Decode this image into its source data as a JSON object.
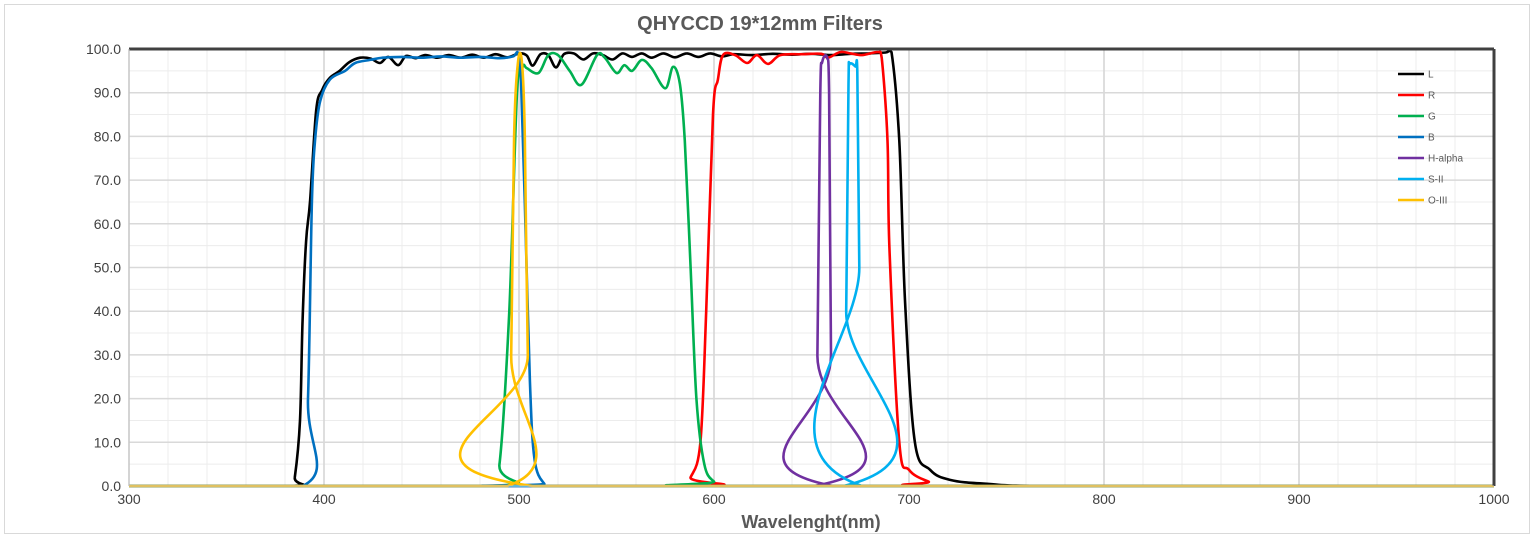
{
  "chart_data": {
    "type": "line",
    "title": "QHYCCD 19*12mm Filters",
    "xlabel": "Wavelenght(nm)",
    "ylabel": "",
    "xlim": [
      300,
      1000
    ],
    "ylim": [
      0,
      100
    ],
    "xticks": [
      "300",
      "400",
      "500",
      "600",
      "700",
      "800",
      "900",
      "1000"
    ],
    "yticks": [
      "0.0",
      "10.0",
      "20.0",
      "30.0",
      "40.0",
      "50.0",
      "60.0",
      "70.0",
      "80.0",
      "90.0",
      "100.0"
    ],
    "grid": true,
    "legend_position": "top-right",
    "series": [
      {
        "name": "L",
        "color": "#000000",
        "points": [
          [
            300,
            0
          ],
          [
            383,
            0
          ],
          [
            385,
            2
          ],
          [
            387.7,
            15
          ],
          [
            389,
            38
          ],
          [
            390.8,
            56
          ],
          [
            392.8,
            65
          ],
          [
            396,
            86
          ],
          [
            399,
            90.6
          ],
          [
            403,
            93.4
          ],
          [
            408,
            95
          ],
          [
            413,
            97
          ],
          [
            418.5,
            98
          ],
          [
            424,
            97.8
          ],
          [
            428.7,
            96.8
          ],
          [
            433,
            98.2
          ],
          [
            438,
            96.3
          ],
          [
            442,
            98.4
          ],
          [
            447,
            97.9
          ],
          [
            452,
            98.6
          ],
          [
            458,
            98
          ],
          [
            464,
            98.6
          ],
          [
            470,
            98
          ],
          [
            476,
            98.7
          ],
          [
            482,
            98
          ],
          [
            488,
            98.8
          ],
          [
            494,
            98.1
          ],
          [
            500,
            99
          ],
          [
            504,
            98.5
          ],
          [
            507,
            96.2
          ],
          [
            511,
            98.8
          ],
          [
            515,
            98.6
          ],
          [
            519,
            95.8
          ],
          [
            523,
            98.8
          ],
          [
            528,
            99
          ],
          [
            533,
            97.6
          ],
          [
            538,
            99
          ],
          [
            543,
            98.6
          ],
          [
            548,
            97.6
          ],
          [
            553,
            99
          ],
          [
            558,
            98.2
          ],
          [
            563,
            99
          ],
          [
            568,
            98
          ],
          [
            574,
            99
          ],
          [
            580,
            98.1
          ],
          [
            586,
            99
          ],
          [
            592,
            98.2
          ],
          [
            598,
            99
          ],
          [
            604,
            98.3
          ],
          [
            610,
            98.8
          ],
          [
            620,
            98.6
          ],
          [
            630,
            98.9
          ],
          [
            640,
            98.7
          ],
          [
            650,
            98.9
          ],
          [
            660,
            98.6
          ],
          [
            670,
            98.9
          ],
          [
            680,
            99
          ],
          [
            688,
            99.2
          ],
          [
            691,
            99.3
          ],
          [
            695,
            79
          ],
          [
            698,
            42
          ],
          [
            703,
            10
          ],
          [
            710.8,
            3.7
          ],
          [
            721,
            1.4
          ],
          [
            740,
            0.5
          ],
          [
            780,
            0
          ],
          [
            1000,
            0
          ]
        ]
      },
      {
        "name": "R",
        "color": "#ff0000",
        "points": [
          [
            300,
            0
          ],
          [
            583,
            0
          ],
          [
            588,
            2
          ],
          [
            593,
            10
          ],
          [
            596,
            40
          ],
          [
            599.5,
            85
          ],
          [
            602,
            93
          ],
          [
            604.6,
            98.6
          ],
          [
            610.8,
            98.6
          ],
          [
            617,
            96.8
          ],
          [
            622,
            98.6
          ],
          [
            627.7,
            96.6
          ],
          [
            634,
            98.6
          ],
          [
            645,
            98.8
          ],
          [
            655,
            98.9
          ],
          [
            658.5,
            98
          ],
          [
            664.6,
            99.3
          ],
          [
            670,
            99
          ],
          [
            676,
            98.6
          ],
          [
            684,
            99.3
          ],
          [
            686,
            98
          ],
          [
            689,
            79
          ],
          [
            690,
            54
          ],
          [
            695,
            10
          ],
          [
            700,
            3.7
          ],
          [
            710,
            1
          ],
          [
            720,
            0
          ],
          [
            1000,
            0
          ]
        ]
      },
      {
        "name": "G",
        "color": "#00b050",
        "points": [
          [
            300,
            0
          ],
          [
            485,
            0
          ],
          [
            490,
            5
          ],
          [
            495,
            40
          ],
          [
            499,
            90
          ],
          [
            502,
            96
          ],
          [
            504,
            95.6
          ],
          [
            510,
            94.5
          ],
          [
            515,
            98.6
          ],
          [
            520,
            98.6
          ],
          [
            526,
            95
          ],
          [
            532,
            91.8
          ],
          [
            540,
            98.6
          ],
          [
            544,
            98
          ],
          [
            550,
            94.5
          ],
          [
            554,
            96.3
          ],
          [
            558,
            95
          ],
          [
            563,
            97.5
          ],
          [
            568,
            95.6
          ],
          [
            575,
            91
          ],
          [
            579,
            95.9
          ],
          [
            582.5,
            92
          ],
          [
            585,
            79
          ],
          [
            588,
            50
          ],
          [
            591,
            20
          ],
          [
            595,
            5
          ],
          [
            600,
            1
          ],
          [
            606,
            0
          ],
          [
            1000,
            0
          ]
        ]
      },
      {
        "name": "B",
        "color": "#0070c0",
        "points": [
          [
            300,
            0
          ],
          [
            389,
            0
          ],
          [
            391.8,
            20
          ],
          [
            393.8,
            65
          ],
          [
            395.4,
            79
          ],
          [
            398,
            88
          ],
          [
            403,
            93
          ],
          [
            410.8,
            95
          ],
          [
            416,
            96.8
          ],
          [
            423.6,
            97.5
          ],
          [
            430,
            98
          ],
          [
            440,
            98.2
          ],
          [
            450,
            98
          ],
          [
            460,
            98.3
          ],
          [
            470,
            98
          ],
          [
            480,
            98.2
          ],
          [
            490,
            97.9
          ],
          [
            497,
            98.3
          ],
          [
            499.5,
            99
          ],
          [
            501,
            93
          ],
          [
            503,
            65
          ],
          [
            505.6,
            24
          ],
          [
            508,
            6
          ],
          [
            513,
            0.5
          ],
          [
            518,
            0
          ],
          [
            1000,
            0
          ]
        ]
      },
      {
        "name": "H-alpha",
        "color": "#7030a0",
        "points": [
          [
            300,
            0
          ],
          [
            651.5,
            0
          ],
          [
            653,
            30
          ],
          [
            654.5,
            90
          ],
          [
            655.5,
            97
          ],
          [
            658,
            98
          ],
          [
            659,
            90
          ],
          [
            660,
            30
          ],
          [
            661,
            0
          ],
          [
            1000,
            0
          ]
        ]
      },
      {
        "name": "S-II",
        "color": "#00b0f0",
        "points": [
          [
            300,
            0
          ],
          [
            666.5,
            0
          ],
          [
            667.8,
            40
          ],
          [
            669,
            92
          ],
          [
            669.5,
            96.5
          ],
          [
            672.5,
            96
          ],
          [
            673.5,
            95
          ],
          [
            674.5,
            50
          ],
          [
            675.8,
            0
          ],
          [
            1000,
            0
          ]
        ]
      },
      {
        "name": "O-III",
        "color": "#ffc000",
        "points": [
          [
            300,
            0
          ],
          [
            494,
            0
          ],
          [
            496,
            30
          ],
          [
            497.5,
            80
          ],
          [
            499.5,
            97
          ],
          [
            501.5,
            97
          ],
          [
            503,
            80
          ],
          [
            504.5,
            30
          ],
          [
            507,
            0
          ],
          [
            1000,
            0
          ]
        ]
      }
    ]
  }
}
